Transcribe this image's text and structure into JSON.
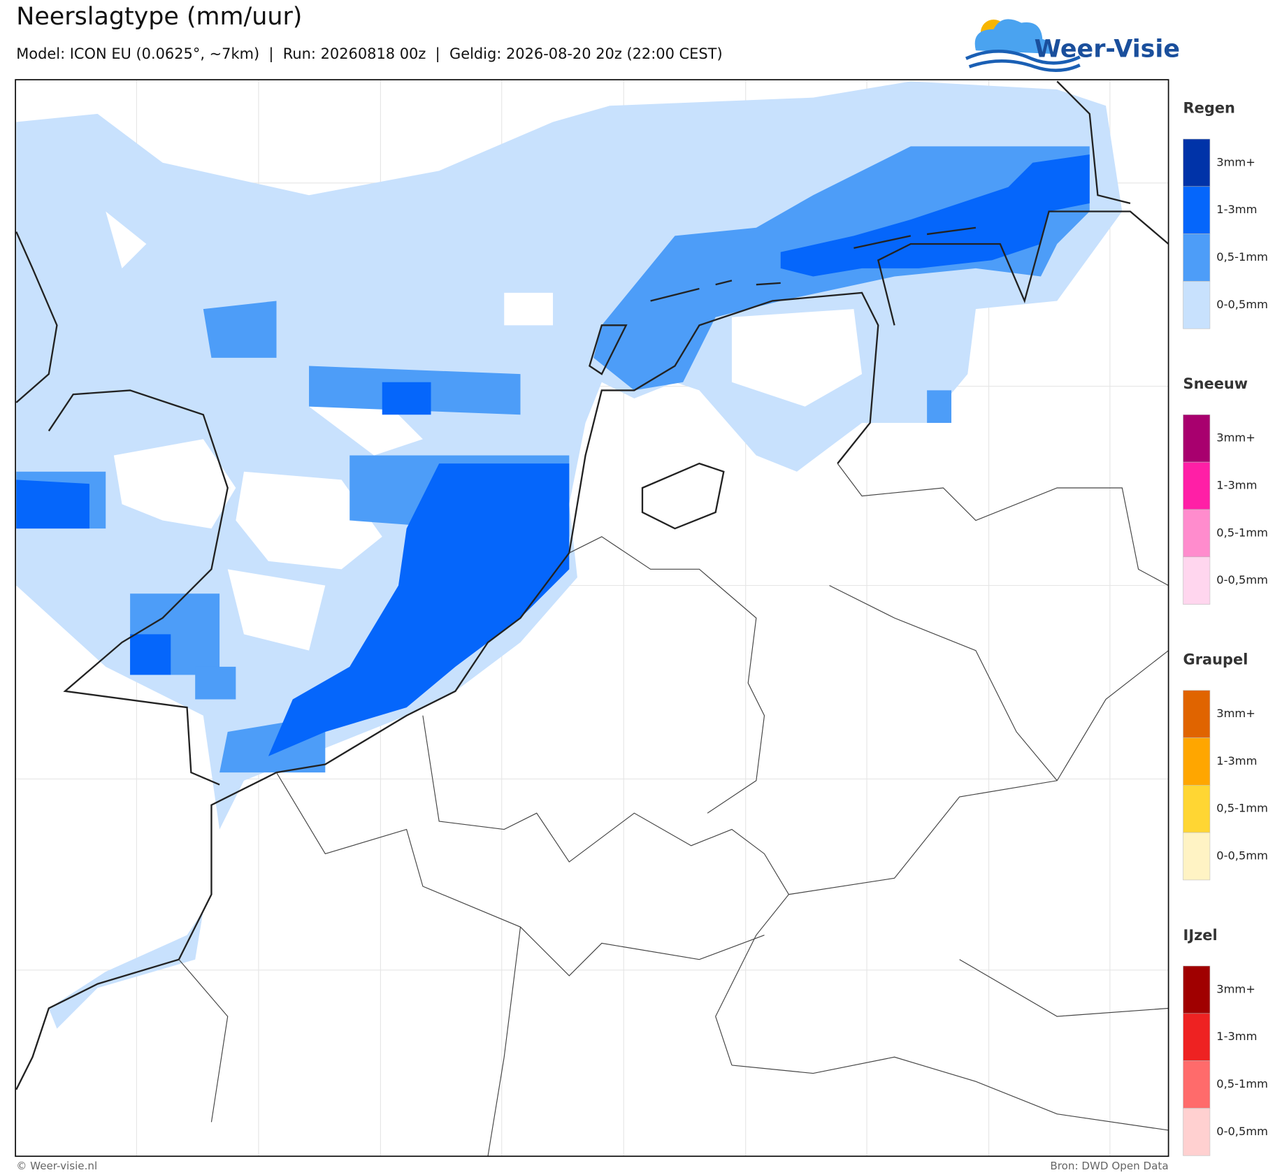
{
  "header": {
    "title": "Neerslagtype (mm/uur)",
    "subtitle": "Model: ICON EU (0.0625°, ~7km)  |  Run: 20260818 00z  |  Geldig: 2026-08-20 20z (22:00 CEST)"
  },
  "logo": {
    "text": "Weer-Visie"
  },
  "legend": {
    "groups": [
      {
        "title": "Regen",
        "items": [
          "3mm+",
          "1-3mm",
          "0,5-1mm",
          "0-0,5mm"
        ],
        "colors": [
          "#0033a8",
          "#0566fb",
          "#4d9df8",
          "#c8e1fd"
        ]
      },
      {
        "title": "Sneeuw",
        "items": [
          "3mm+",
          "1-3mm",
          "0,5-1mm",
          "0-0,5mm"
        ],
        "colors": [
          "#a8006e",
          "#ff1fa6",
          "#ff8ccd",
          "#ffd6ee"
        ]
      },
      {
        "title": "Graupel",
        "items": [
          "3mm+",
          "1-3mm",
          "0,5-1mm",
          "0-0,5mm"
        ],
        "colors": [
          "#e06400",
          "#ffa600",
          "#ffd633",
          "#fff3c4"
        ]
      },
      {
        "title": "IJzel",
        "items": [
          "3mm+",
          "1-3mm",
          "0,5-1mm",
          "0-0,5mm"
        ],
        "colors": [
          "#a00000",
          "#ee2222",
          "#ff6b6b",
          "#ffd0d0"
        ]
      }
    ]
  },
  "footer": {
    "left": "© Weer-visie.nl",
    "right": "Bron: DWD Open Data"
  }
}
